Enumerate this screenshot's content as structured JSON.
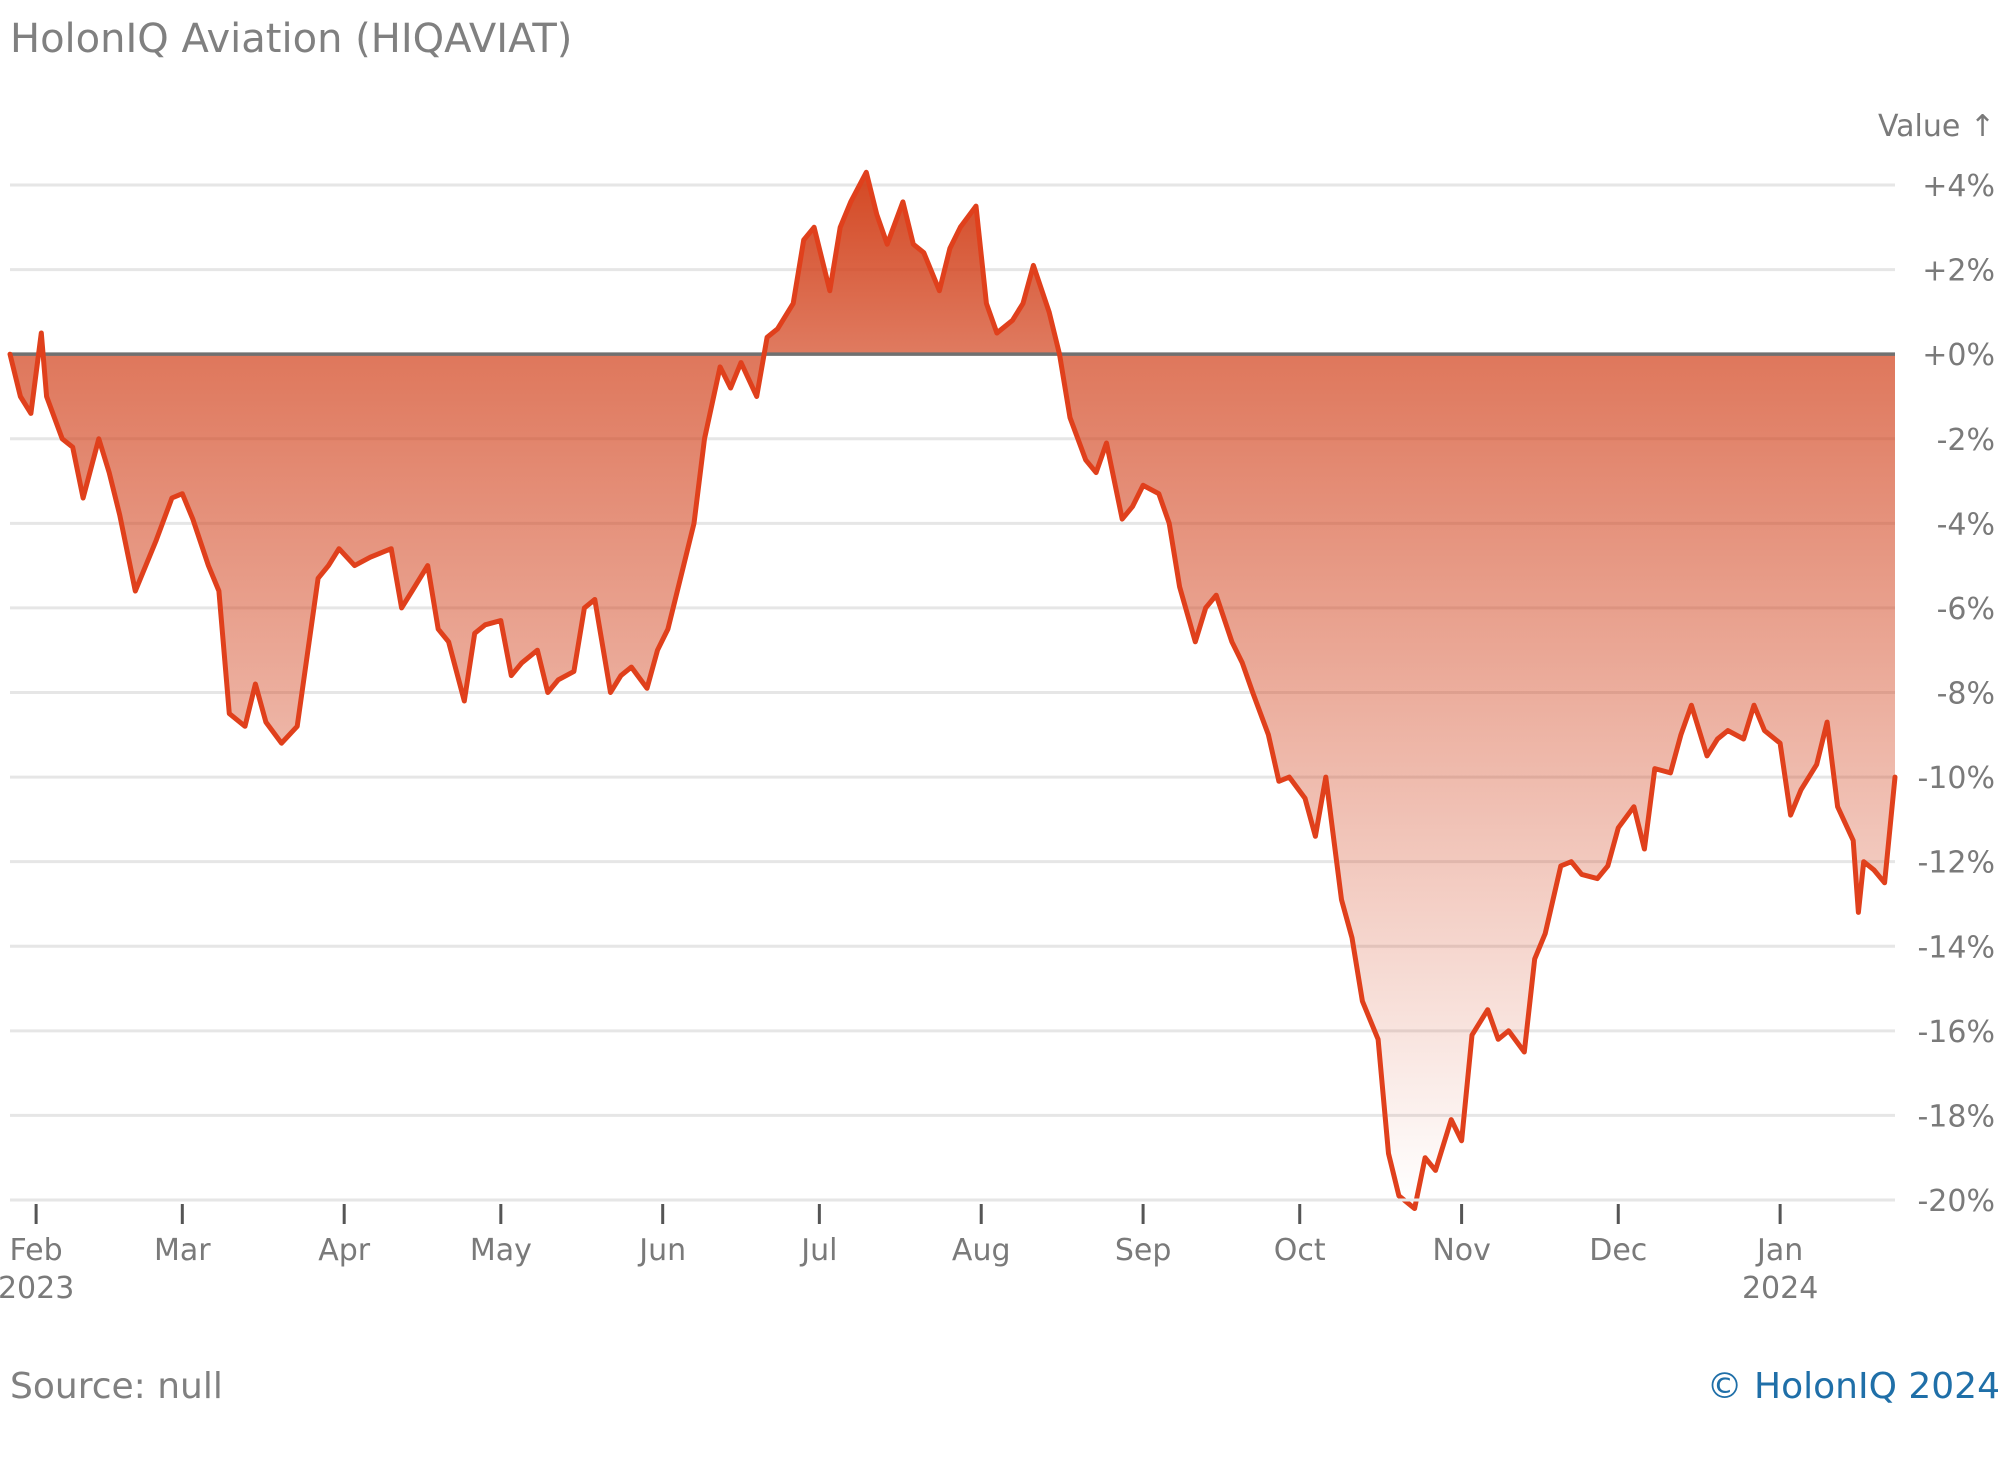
{
  "title": "HolonIQ Aviation (HIQAVIAT)",
  "source_label": "Source: null",
  "credit_label": "© HolonIQ 2024",
  "colors": {
    "line": "#e0401c",
    "fill_top": "#d84a24",
    "grid": "#e6e6e6",
    "zero": "#707070"
  },
  "chart_data": {
    "type": "area",
    "y_axis_title": "Value ↑",
    "ylim": [
      -20,
      4
    ],
    "y_ticks": [
      4,
      2,
      0,
      -2,
      -4,
      -6,
      -8,
      -10,
      -12,
      -14,
      -16,
      -18,
      -20
    ],
    "y_tick_labels": [
      "+4%",
      "+2%",
      "+0%",
      "-2%",
      "-4%",
      "-6%",
      "-8%",
      "-10%",
      "-12%",
      "-14%",
      "-16%",
      "-18%",
      "-20%"
    ],
    "x_ticks": [
      {
        "date": "2023-02-01",
        "label": "Feb",
        "sub": "2023"
      },
      {
        "date": "2023-03-01",
        "label": "Mar",
        "sub": ""
      },
      {
        "date": "2023-04-01",
        "label": "Apr",
        "sub": ""
      },
      {
        "date": "2023-05-01",
        "label": "May",
        "sub": ""
      },
      {
        "date": "2023-06-01",
        "label": "Jun",
        "sub": ""
      },
      {
        "date": "2023-07-01",
        "label": "Jul",
        "sub": ""
      },
      {
        "date": "2023-08-01",
        "label": "Aug",
        "sub": ""
      },
      {
        "date": "2023-09-01",
        "label": "Sep",
        "sub": ""
      },
      {
        "date": "2023-10-01",
        "label": "Oct",
        "sub": ""
      },
      {
        "date": "2023-11-01",
        "label": "Nov",
        "sub": ""
      },
      {
        "date": "2023-12-01",
        "label": "Dec",
        "sub": ""
      },
      {
        "date": "2024-01-01",
        "label": "Jan",
        "sub": "2024"
      }
    ],
    "xlim": [
      "2023-01-27",
      "2024-01-23"
    ],
    "grid": true,
    "series": [
      {
        "points": [
          [
            "2023-01-27",
            0.0
          ],
          [
            "2023-01-29",
            -1.0
          ],
          [
            "2023-01-31",
            -1.4
          ],
          [
            "2023-02-02",
            0.5
          ],
          [
            "2023-02-03",
            -1.0
          ],
          [
            "2023-02-06",
            -2.0
          ],
          [
            "2023-02-08",
            -2.2
          ],
          [
            "2023-02-10",
            -3.4
          ],
          [
            "2023-02-13",
            -2.0
          ],
          [
            "2023-02-15",
            -2.8
          ],
          [
            "2023-02-17",
            -3.8
          ],
          [
            "2023-02-20",
            -5.6
          ],
          [
            "2023-02-22",
            -5.0
          ],
          [
            "2023-02-24",
            -4.4
          ],
          [
            "2023-02-27",
            -3.4
          ],
          [
            "2023-03-01",
            -3.3
          ],
          [
            "2023-03-03",
            -3.9
          ],
          [
            "2023-03-06",
            -5.0
          ],
          [
            "2023-03-08",
            -5.6
          ],
          [
            "2023-03-10",
            -8.5
          ],
          [
            "2023-03-13",
            -8.8
          ],
          [
            "2023-03-15",
            -7.8
          ],
          [
            "2023-03-17",
            -8.7
          ],
          [
            "2023-03-20",
            -9.2
          ],
          [
            "2023-03-23",
            -8.8
          ],
          [
            "2023-03-27",
            -5.3
          ],
          [
            "2023-03-29",
            -5.0
          ],
          [
            "2023-03-31",
            -4.6
          ],
          [
            "2023-04-03",
            -5.0
          ],
          [
            "2023-04-06",
            -4.8
          ],
          [
            "2023-04-10",
            -4.6
          ],
          [
            "2023-04-12",
            -6.0
          ],
          [
            "2023-04-14",
            -5.6
          ],
          [
            "2023-04-17",
            -5.0
          ],
          [
            "2023-04-19",
            -6.5
          ],
          [
            "2023-04-21",
            -6.8
          ],
          [
            "2023-04-24",
            -8.2
          ],
          [
            "2023-04-26",
            -6.6
          ],
          [
            "2023-04-28",
            -6.4
          ],
          [
            "2023-05-01",
            -6.3
          ],
          [
            "2023-05-03",
            -7.6
          ],
          [
            "2023-05-05",
            -7.3
          ],
          [
            "2023-05-08",
            -7.0
          ],
          [
            "2023-05-10",
            -8.0
          ],
          [
            "2023-05-12",
            -7.7
          ],
          [
            "2023-05-15",
            -7.5
          ],
          [
            "2023-05-17",
            -6.0
          ],
          [
            "2023-05-19",
            -5.8
          ],
          [
            "2023-05-22",
            -8.0
          ],
          [
            "2023-05-24",
            -7.6
          ],
          [
            "2023-05-26",
            -7.4
          ],
          [
            "2023-05-29",
            -7.9
          ],
          [
            "2023-05-31",
            -7.0
          ],
          [
            "2023-06-02",
            -6.5
          ],
          [
            "2023-06-05",
            -5.0
          ],
          [
            "2023-06-07",
            -4.0
          ],
          [
            "2023-06-09",
            -2.0
          ],
          [
            "2023-06-12",
            -0.3
          ],
          [
            "2023-06-14",
            -0.8
          ],
          [
            "2023-06-16",
            -0.2
          ],
          [
            "2023-06-19",
            -1.0
          ],
          [
            "2023-06-21",
            0.4
          ],
          [
            "2023-06-23",
            0.6
          ],
          [
            "2023-06-26",
            1.2
          ],
          [
            "2023-06-28",
            2.7
          ],
          [
            "2023-06-30",
            3.0
          ],
          [
            "2023-07-03",
            1.5
          ],
          [
            "2023-07-05",
            3.0
          ],
          [
            "2023-07-07",
            3.6
          ],
          [
            "2023-07-10",
            4.3
          ],
          [
            "2023-07-12",
            3.3
          ],
          [
            "2023-07-14",
            2.6
          ],
          [
            "2023-07-17",
            3.6
          ],
          [
            "2023-07-19",
            2.6
          ],
          [
            "2023-07-21",
            2.4
          ],
          [
            "2023-07-24",
            1.5
          ],
          [
            "2023-07-26",
            2.5
          ],
          [
            "2023-07-28",
            3.0
          ],
          [
            "2023-07-31",
            3.5
          ],
          [
            "2023-08-02",
            1.2
          ],
          [
            "2023-08-04",
            0.5
          ],
          [
            "2023-08-07",
            0.8
          ],
          [
            "2023-08-09",
            1.2
          ],
          [
            "2023-08-11",
            2.1
          ],
          [
            "2023-08-14",
            1.0
          ],
          [
            "2023-08-16",
            0.0
          ],
          [
            "2023-08-18",
            -1.5
          ],
          [
            "2023-08-21",
            -2.5
          ],
          [
            "2023-08-23",
            -2.8
          ],
          [
            "2023-08-25",
            -2.1
          ],
          [
            "2023-08-28",
            -3.9
          ],
          [
            "2023-08-30",
            -3.6
          ],
          [
            "2023-09-01",
            -3.1
          ],
          [
            "2023-09-04",
            -3.3
          ],
          [
            "2023-09-06",
            -4.0
          ],
          [
            "2023-09-08",
            -5.5
          ],
          [
            "2023-09-11",
            -6.8
          ],
          [
            "2023-09-13",
            -6.0
          ],
          [
            "2023-09-15",
            -5.7
          ],
          [
            "2023-09-18",
            -6.8
          ],
          [
            "2023-09-20",
            -7.3
          ],
          [
            "2023-09-22",
            -8.0
          ],
          [
            "2023-09-25",
            -9.0
          ],
          [
            "2023-09-27",
            -10.1
          ],
          [
            "2023-09-29",
            -10.0
          ],
          [
            "2023-10-02",
            -10.5
          ],
          [
            "2023-10-04",
            -11.4
          ],
          [
            "2023-10-06",
            -10.0
          ],
          [
            "2023-10-09",
            -12.9
          ],
          [
            "2023-10-11",
            -13.8
          ],
          [
            "2023-10-13",
            -15.3
          ],
          [
            "2023-10-16",
            -16.2
          ],
          [
            "2023-10-18",
            -18.9
          ],
          [
            "2023-10-20",
            -19.9
          ],
          [
            "2023-10-23",
            -20.2
          ],
          [
            "2023-10-25",
            -19.0
          ],
          [
            "2023-10-27",
            -19.3
          ],
          [
            "2023-10-30",
            -18.1
          ],
          [
            "2023-11-01",
            -18.6
          ],
          [
            "2023-11-03",
            -16.1
          ],
          [
            "2023-11-06",
            -15.5
          ],
          [
            "2023-11-08",
            -16.2
          ],
          [
            "2023-11-10",
            -16.0
          ],
          [
            "2023-11-13",
            -16.5
          ],
          [
            "2023-11-15",
            -14.3
          ],
          [
            "2023-11-17",
            -13.7
          ],
          [
            "2023-11-20",
            -12.1
          ],
          [
            "2023-11-22",
            -12.0
          ],
          [
            "2023-11-24",
            -12.3
          ],
          [
            "2023-11-27",
            -12.4
          ],
          [
            "2023-11-29",
            -12.1
          ],
          [
            "2023-12-01",
            -11.2
          ],
          [
            "2023-12-04",
            -10.7
          ],
          [
            "2023-12-06",
            -11.7
          ],
          [
            "2023-12-08",
            -9.8
          ],
          [
            "2023-12-11",
            -9.9
          ],
          [
            "2023-12-13",
            -9.0
          ],
          [
            "2023-12-15",
            -8.3
          ],
          [
            "2023-12-18",
            -9.5
          ],
          [
            "2023-12-20",
            -9.1
          ],
          [
            "2023-12-22",
            -8.9
          ],
          [
            "2023-12-25",
            -9.1
          ],
          [
            "2023-12-27",
            -8.3
          ],
          [
            "2023-12-29",
            -8.9
          ],
          [
            "2024-01-01",
            -9.2
          ],
          [
            "2024-01-03",
            -10.9
          ],
          [
            "2024-01-05",
            -10.3
          ],
          [
            "2024-01-08",
            -9.7
          ],
          [
            "2024-01-10",
            -8.7
          ],
          [
            "2024-01-12",
            -10.7
          ],
          [
            "2024-01-15",
            -11.5
          ],
          [
            "2024-01-16",
            -13.2
          ],
          [
            "2024-01-17",
            -12.0
          ],
          [
            "2024-01-19",
            -12.2
          ],
          [
            "2024-01-21",
            -12.5
          ],
          [
            "2024-01-23",
            -10.0
          ]
        ]
      }
    ]
  }
}
